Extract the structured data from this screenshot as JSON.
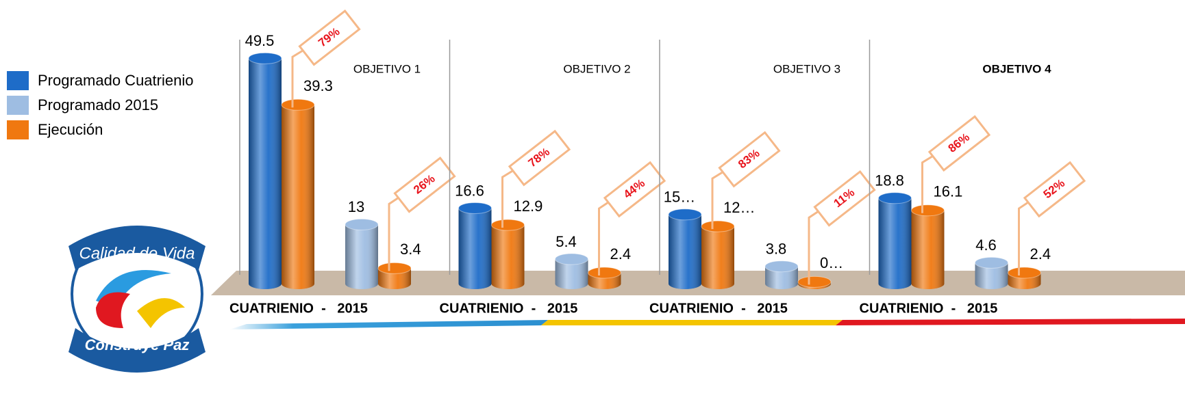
{
  "chart_data": {
    "type": "bar",
    "groups": [
      "OBJETIVO  1",
      "OBJETIVO  2",
      "OBJETIVO  3",
      "OBJETIVO  4"
    ],
    "period_label": "CUATRIENIO  -   2015",
    "ylim": [
      0,
      50
    ],
    "series": [
      {
        "name": "Programado Cuatrienio",
        "color": "#1e6cc8",
        "values": [
          49.5,
          16.6,
          15.2,
          18.8
        ],
        "value_labels": [
          "49.5",
          "16.6",
          "15…",
          "18.8"
        ]
      },
      {
        "name": "Programado 2015",
        "color": "#9ebde2",
        "values": [
          13,
          5.4,
          3.8,
          4.6
        ],
        "value_labels": [
          "13",
          "5.4",
          "3.8",
          "4.6"
        ]
      },
      {
        "name": "Ejecución",
        "color": "#f07810",
        "values": [
          39.3,
          3.4,
          12.9,
          2.4,
          12.6,
          0.4,
          16.1,
          2.4
        ],
        "value_labels": [
          "39.3",
          "3.4",
          "12.9",
          "2.4",
          "12…",
          "0…",
          "16.1",
          "2.4"
        ]
      }
    ],
    "ratios": [
      79,
      26,
      78,
      44,
      83,
      11,
      86,
      52
    ],
    "ratio_labels": [
      "79%",
      "26%",
      "78%",
      "44%",
      "83%",
      "11%",
      "86%",
      "52%"
    ]
  },
  "logo": {
    "top": "Calidad de Vida",
    "bottom": "Construye Paz"
  }
}
